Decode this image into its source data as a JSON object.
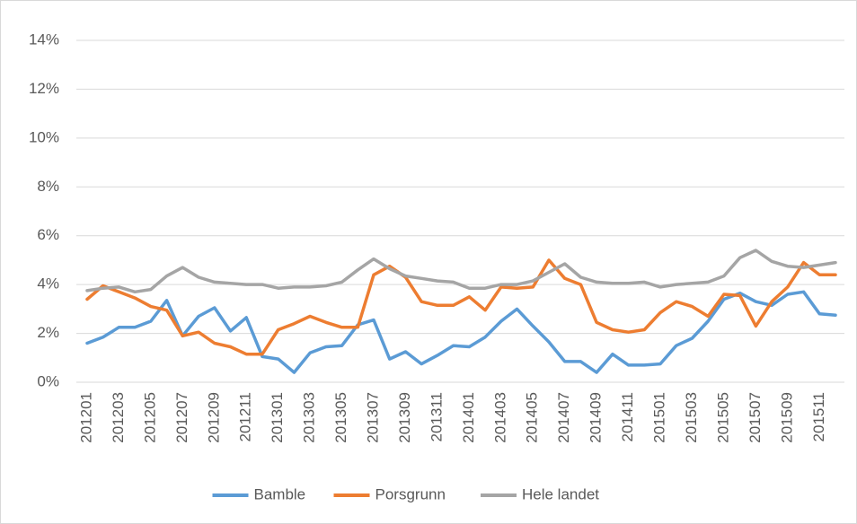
{
  "chart_data": {
    "type": "line",
    "categories": [
      "201201",
      null,
      "201203",
      null,
      "201205",
      null,
      "201207",
      null,
      "201209",
      null,
      "201211",
      null,
      "201301",
      null,
      "201303",
      null,
      "201305",
      null,
      "201307",
      null,
      "201309",
      null,
      "201311",
      null,
      "201401",
      null,
      "201403",
      null,
      "201405",
      null,
      "201407",
      null,
      "201409",
      null,
      "201411",
      null,
      "201501",
      null,
      "201503",
      null,
      "201505",
      null,
      "201507",
      null,
      "201509",
      null,
      "201511",
      null
    ],
    "series": [
      {
        "name": "Bamble",
        "color": "#5b9bd5",
        "values": [
          1.6,
          1.85,
          2.25,
          2.25,
          2.5,
          3.35,
          1.9,
          2.7,
          3.05,
          2.1,
          2.65,
          1.05,
          0.95,
          0.4,
          1.2,
          1.45,
          1.5,
          2.35,
          2.55,
          0.95,
          1.25,
          0.75,
          1.1,
          1.5,
          1.45,
          1.85,
          2.5,
          3.0,
          2.3,
          1.65,
          0.85,
          0.85,
          0.4,
          1.15,
          0.7,
          0.7,
          0.75,
          1.5,
          1.8,
          2.5,
          3.4,
          3.65,
          3.3,
          3.15,
          3.6,
          3.7,
          2.8,
          2.75
        ]
      },
      {
        "name": "Porsgrunn",
        "color": "#ed7d31",
        "values": [
          3.4,
          3.95,
          3.7,
          3.45,
          3.1,
          2.95,
          1.9,
          2.05,
          1.6,
          1.45,
          1.15,
          1.15,
          2.15,
          2.4,
          2.7,
          2.45,
          2.25,
          2.25,
          4.4,
          4.75,
          4.3,
          3.3,
          3.15,
          3.15,
          3.5,
          2.95,
          3.9,
          3.85,
          3.9,
          5.0,
          4.25,
          4.0,
          2.45,
          2.15,
          2.05,
          2.15,
          2.85,
          3.3,
          3.1,
          2.7,
          3.6,
          3.55,
          2.3,
          3.3,
          3.9,
          4.9,
          4.4,
          4.4
        ]
      },
      {
        "name": "Hele landet",
        "color": "#a5a5a5",
        "values": [
          3.75,
          3.85,
          3.9,
          3.7,
          3.8,
          4.35,
          4.7,
          4.3,
          4.1,
          4.05,
          4.0,
          4.0,
          3.85,
          3.9,
          3.9,
          3.95,
          4.1,
          4.6,
          5.05,
          4.65,
          4.35,
          4.25,
          4.15,
          4.1,
          3.85,
          3.85,
          4.0,
          4.0,
          4.15,
          4.5,
          4.85,
          4.3,
          4.1,
          4.05,
          4.05,
          4.1,
          3.9,
          4.0,
          4.05,
          4.1,
          4.35,
          5.1,
          5.4,
          4.95,
          4.75,
          4.7,
          4.8,
          4.9
        ]
      }
    ],
    "ylim": [
      0,
      14
    ],
    "yticks": [
      {
        "value": 0,
        "label": "0%"
      },
      {
        "value": 2,
        "label": "2%"
      },
      {
        "value": 4,
        "label": "4%"
      },
      {
        "value": 6,
        "label": "6%"
      },
      {
        "value": 8,
        "label": "8%"
      },
      {
        "value": 10,
        "label": "10%"
      },
      {
        "value": 12,
        "label": "12%"
      },
      {
        "value": 14,
        "label": "14%"
      }
    ],
    "grid": true,
    "legend": "bottom"
  }
}
